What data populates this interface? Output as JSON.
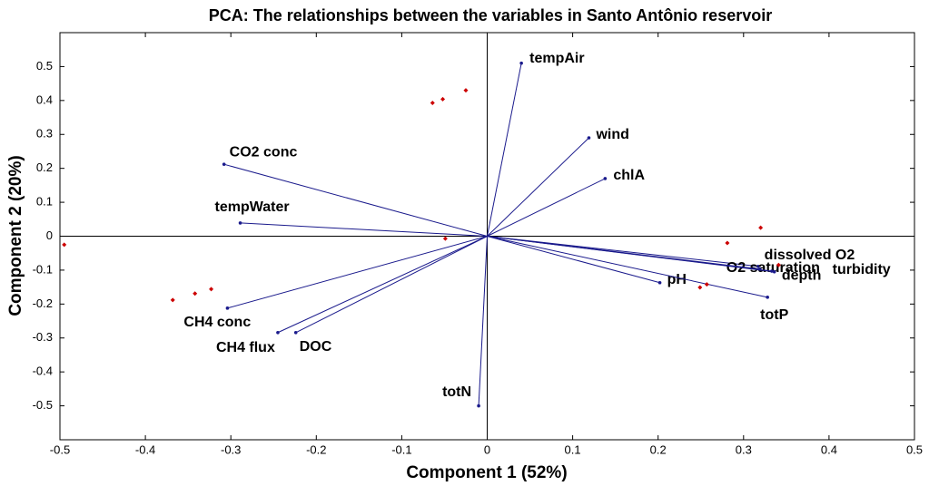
{
  "chart_data": {
    "type": "biplot",
    "title": "PCA: The relationships between the variables in Santo Antônio reservoir",
    "x_label": "Component 1 (52%)",
    "y_label": "Component 2 (20%)",
    "xlim": [
      -0.5,
      0.5
    ],
    "ylim": [
      -0.6,
      0.6
    ],
    "xticks": [
      -0.5,
      -0.4,
      -0.3,
      -0.2,
      -0.1,
      0,
      0.1,
      0.2,
      0.3,
      0.4,
      0.5
    ],
    "yticks": [
      -0.5,
      -0.4,
      -0.3,
      -0.2,
      -0.1,
      0,
      0.1,
      0.2,
      0.3,
      0.4,
      0.5
    ],
    "vector_color": "#1a1a8c",
    "point_color": "#cc0000",
    "vectors": [
      {
        "label": "tempAir",
        "x": 0.04,
        "y": 0.51
      },
      {
        "label": "wind",
        "x": 0.119,
        "y": 0.29
      },
      {
        "label": "chlA",
        "x": 0.138,
        "y": 0.17
      },
      {
        "label": "CO2 conc",
        "x": -0.308,
        "y": 0.212
      },
      {
        "label": "tempWater",
        "x": -0.289,
        "y": 0.039
      },
      {
        "label": "CH4 conc",
        "x": -0.304,
        "y": -0.212
      },
      {
        "label": "CH4 flux",
        "x": -0.245,
        "y": -0.284
      },
      {
        "label": "DOC",
        "x": -0.224,
        "y": -0.284
      },
      {
        "label": "totN",
        "x": -0.01,
        "y": -0.5
      },
      {
        "label": "pH",
        "x": 0.202,
        "y": -0.137
      },
      {
        "label": "totP",
        "x": 0.328,
        "y": -0.18
      },
      {
        "label": "O2 saturation",
        "x": 0.317,
        "y": -0.089
      },
      {
        "label": "dissolved O2",
        "x": 0.319,
        "y": -0.097
      },
      {
        "label": "depth",
        "x": 0.333,
        "y": -0.103
      },
      {
        "label": "turbidity",
        "x": 0.336,
        "y": -0.105
      }
    ],
    "points": {
      "x": [
        -0.064,
        -0.052,
        -0.025,
        -0.495,
        -0.368,
        -0.342,
        -0.323,
        -0.049,
        0.281,
        0.32,
        0.341,
        0.249,
        0.257
      ],
      "y": [
        0.393,
        0.404,
        0.43,
        -0.025,
        -0.188,
        -0.169,
        -0.156,
        -0.007,
        -0.02,
        0.025,
        -0.085,
        -0.151,
        -0.142
      ]
    }
  }
}
